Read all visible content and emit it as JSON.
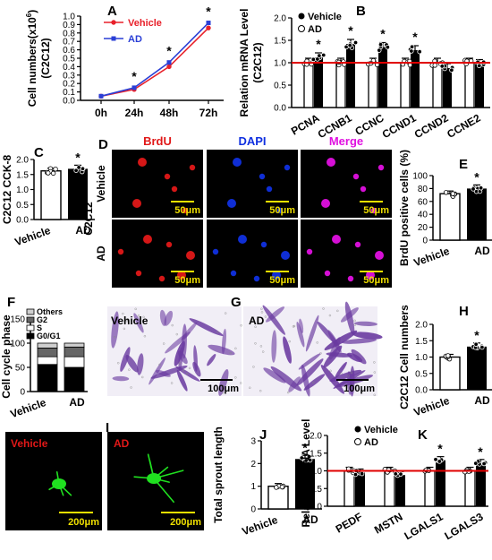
{
  "labels": {
    "A": "A",
    "B": "B",
    "C": "C",
    "D": "D",
    "E": "E",
    "F": "F",
    "G": "G",
    "H": "H",
    "I": "I",
    "J": "J",
    "K": "K"
  },
  "groups": {
    "vehicle": "Vehicle",
    "ad": "AD"
  },
  "colors": {
    "vehicle_line": "#e8202a",
    "ad_line": "#2a3fd6",
    "redline": "#e00000",
    "brdu": "#e01818",
    "dapi": "#1030e0",
    "merge": "#e010e0",
    "scale": "#f0e000",
    "stain": "#6a3aa0",
    "sprout": "#20e020"
  },
  "panelA": {
    "ylabel_line1": "Cell numbers(x10",
    "ylabel_sup": "6",
    "ylabel_close": ")",
    "ylabel_line2": "(C2C12)",
    "x": [
      "0h",
      "24h",
      "48h",
      "72h"
    ],
    "yticks": [
      "0.0",
      "0.1",
      "0.2",
      "0.3",
      "0.4",
      "0.5",
      "0.6",
      "0.7",
      "0.8",
      "0.9",
      "1.0"
    ],
    "ylim": [
      0,
      1.0
    ],
    "vehicle": [
      0.05,
      0.13,
      0.4,
      0.86
    ],
    "ad": [
      0.05,
      0.15,
      0.45,
      0.92
    ],
    "star": "*"
  },
  "panelB": {
    "ylabel_line1": "Relation mRNA Level",
    "ylabel_line2": "(C2C12)",
    "categories": [
      "PCNA",
      "CCNB1",
      "CCNC",
      "CCND1",
      "CCND2",
      "CCNE2"
    ],
    "vehicle": [
      1.0,
      1.0,
      1.0,
      1.0,
      1.0,
      1.0
    ],
    "ad": [
      1.12,
      1.42,
      1.35,
      1.28,
      0.88,
      0.97
    ],
    "stars": [
      "*",
      "*",
      "*",
      "*",
      "",
      ""
    ],
    "yticks": [
      "0.0",
      "0.5",
      "1.0",
      "1.5",
      "2.0"
    ],
    "ylim": [
      0,
      2.0
    ]
  },
  "panelC": {
    "ylabel": "C2C12 CCK-8",
    "vehicle": 1.62,
    "ad": 1.69,
    "yticks": [
      "0.0",
      "0.5",
      "1.0",
      "1.5",
      "2.0"
    ],
    "ylim": [
      0,
      2.0
    ],
    "star": "*"
  },
  "panelD": {
    "channels": [
      "BrdU",
      "DAPI",
      "Merge"
    ],
    "row_labels": [
      "Vehicle",
      "AD"
    ],
    "cell_label": "C2C12",
    "scale": "50μm"
  },
  "panelE": {
    "ylabel": "BrdU positive cells (%)",
    "vehicle": 72,
    "ad": 80,
    "yticks": [
      "0",
      "20",
      "40",
      "60",
      "80",
      "100"
    ],
    "ylim": [
      0,
      100
    ],
    "star": "*"
  },
  "panelF": {
    "ylabel": "Cell cycle phase",
    "legend": [
      "Others",
      "G2",
      "S",
      "G0/G1"
    ],
    "vehicle": {
      "G0/G1": 56,
      "S": 16,
      "G2": 18,
      "Others": 10
    },
    "ad": {
      "G0/G1": 50,
      "S": 22,
      "G2": 20,
      "Others": 8
    },
    "yticks": [
      "0",
      "50",
      "100",
      "150"
    ],
    "ylim": [
      0,
      150
    ]
  },
  "panelG": {
    "scale": "100μm"
  },
  "panelH": {
    "ylabel": "C2C12 Cell numbers",
    "vehicle": 1.0,
    "ad": 1.32,
    "yticks": [
      "0.0",
      "0.5",
      "1.0",
      "1.5",
      "2.0"
    ],
    "ylim": [
      0,
      2.0
    ],
    "star": "*"
  },
  "panelI": {
    "scale": "200μm"
  },
  "panelJ": {
    "ylabel": "Total sprout length",
    "vehicle": 1.0,
    "ad": 2.2,
    "yticks": [
      "0",
      "1",
      "2",
      "3"
    ],
    "ylim": [
      0,
      3
    ],
    "star": "*"
  },
  "panelK": {
    "ylabel": "Relation mRNA Level",
    "categories": [
      "PEDF",
      "MSTN",
      "LGALS1",
      "LGALS3"
    ],
    "vehicle": [
      1.0,
      1.0,
      1.0,
      1.0
    ],
    "ad": [
      0.95,
      0.88,
      1.3,
      1.22
    ],
    "stars": [
      "",
      "",
      "*",
      "*"
    ],
    "yticks": [
      "0.0",
      "0.5",
      "1.0",
      "1.5",
      "2.0"
    ],
    "ylim": [
      0,
      2.0
    ]
  }
}
